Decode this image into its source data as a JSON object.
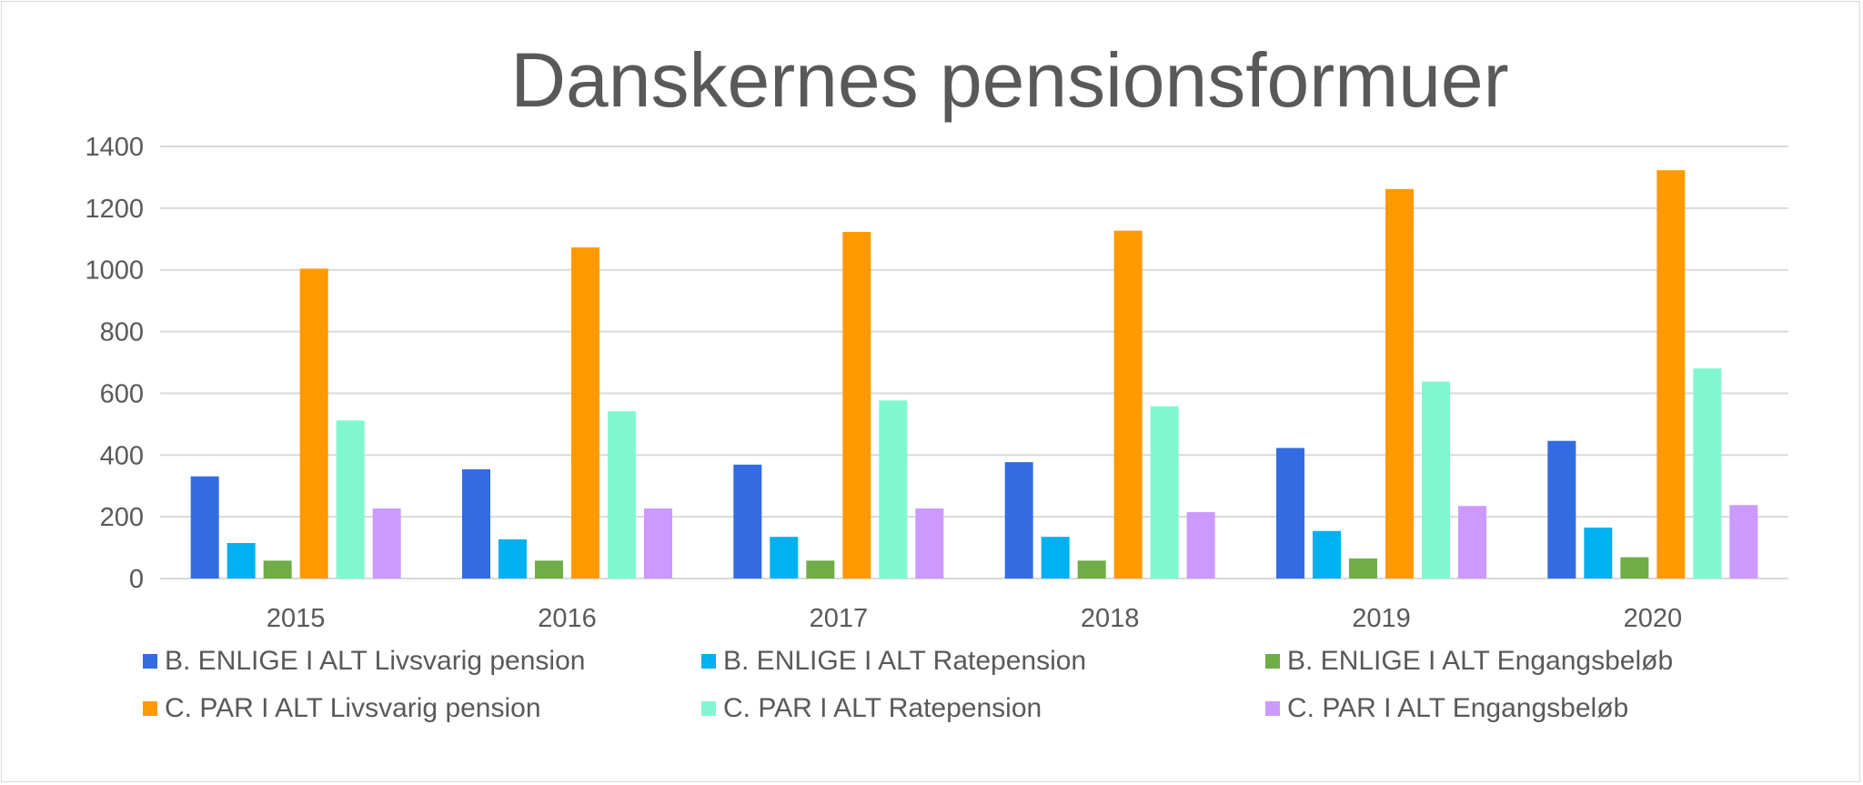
{
  "chart_data": {
    "type": "bar",
    "title": "Danskernes pensionsformuer",
    "xlabel": "",
    "ylabel": "",
    "categories": [
      "2015",
      "2016",
      "2017",
      "2018",
      "2019",
      "2020"
    ],
    "ylim": [
      0,
      1400
    ],
    "yticks": [
      0,
      200,
      400,
      600,
      800,
      1000,
      1200,
      1400
    ],
    "grid": true,
    "legend_position": "bottom",
    "series": [
      {
        "name": "B. ENLIGE I ALT Livsvarig pension",
        "color": "#326ce0",
        "values": [
          331,
          354,
          369,
          377,
          423,
          446
        ]
      },
      {
        "name": "B. ENLIGE I ALT Ratepension",
        "color": "#00b0f0",
        "values": [
          115,
          127,
          135,
          135,
          154,
          165
        ]
      },
      {
        "name": "B. ENLIGE I ALT Engangsbeløb",
        "color": "#70ad47",
        "values": [
          58,
          58,
          58,
          58,
          65,
          69
        ]
      },
      {
        "name": "C. PAR I ALT Livsvarig pension",
        "color": "#ff9900",
        "values": [
          1004,
          1073,
          1123,
          1127,
          1262,
          1323
        ]
      },
      {
        "name": "C. PAR I ALT Ratepension",
        "color": "#7ff8d0",
        "values": [
          512,
          542,
          577,
          558,
          638,
          681
        ]
      },
      {
        "name": "C. PAR I ALT Engangsbeløb",
        "color": "#cc99ff",
        "values": [
          227,
          227,
          227,
          215,
          235,
          238
        ]
      }
    ]
  }
}
